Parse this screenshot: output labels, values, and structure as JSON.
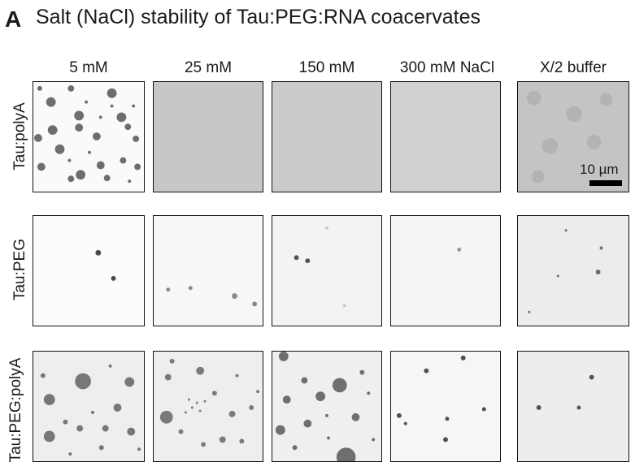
{
  "figure": {
    "panel_letter": "A",
    "title": "Salt (NaCl) stability of Tau:PEG:RNA coacervates",
    "columns": [
      "5 mM",
      "25 mM",
      "150 mM",
      "300 mM NaCl",
      "X/2 buffer"
    ],
    "rows": [
      "Tau:polyA",
      "Tau:PEG",
      "Tau:PEG:polyA"
    ],
    "scale_bar": {
      "label": "10 µm"
    }
  }
}
